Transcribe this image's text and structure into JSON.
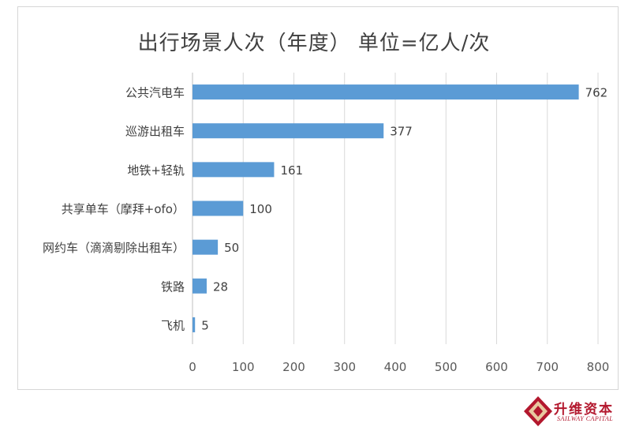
{
  "chart_data": {
    "type": "bar",
    "orientation": "horizontal",
    "title": "出行场景人次（年度） 单位=亿人/次",
    "categories": [
      "公共汽电车",
      "巡游出租车",
      "地铁+轻轨",
      "共享单车（摩拜+ofo）",
      "网约车（滴滴剔除出租车）",
      "铁路",
      "飞机"
    ],
    "values": [
      762,
      377,
      161,
      100,
      50,
      28,
      5
    ],
    "data_labels": [
      "762",
      "377",
      "161",
      "100",
      "50",
      "28",
      "5"
    ],
    "xlim": [
      0,
      800
    ],
    "x_ticks": [
      "0",
      "100",
      "200",
      "300",
      "400",
      "500",
      "600",
      "700",
      "800"
    ],
    "xlabel": "",
    "ylabel": "",
    "grid": "vertical",
    "bar_color": "#5b9bd5"
  },
  "logo": {
    "text_cn": "升维资本",
    "text_en": "SAILWAY CAPITAL"
  }
}
